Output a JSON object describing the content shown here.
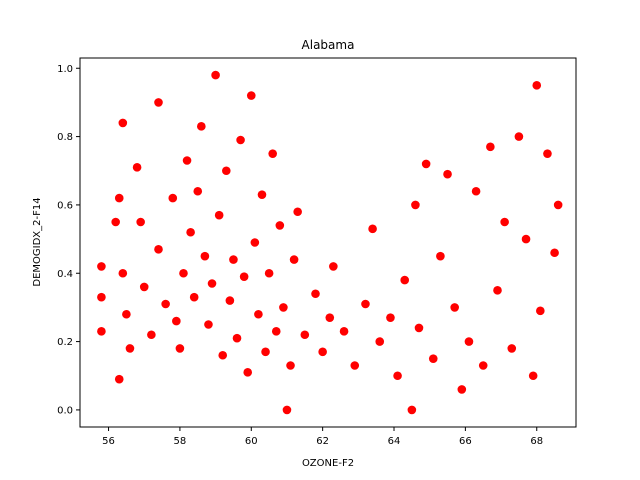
{
  "chart_data": {
    "type": "scatter",
    "title": "Alabama",
    "xlabel": "OZONE-F2",
    "ylabel": "DEMOGIDX_2-F14",
    "xlim": [
      55.2,
      69.1
    ],
    "ylim": [
      -0.05,
      1.03
    ],
    "xticks": [
      56,
      58,
      60,
      62,
      64,
      66,
      68
    ],
    "yticks": [
      0.0,
      0.2,
      0.4,
      0.6,
      0.8,
      1.0
    ],
    "xtick_labels": [
      "56",
      "58",
      "60",
      "62",
      "64",
      "66",
      "68"
    ],
    "ytick_labels": [
      "0.0",
      "0.2",
      "0.4",
      "0.6",
      "0.8",
      "1.0"
    ],
    "grid": false,
    "legend": "none",
    "marker_color": "#ff0000",
    "series": [
      {
        "x": [
          55.8,
          55.8,
          55.8,
          56.2,
          56.3,
          56.3,
          56.4,
          56.4,
          56.5,
          56.6,
          56.8,
          56.9,
          57.0,
          57.2,
          57.4,
          57.4,
          57.6,
          57.8,
          57.9,
          58.0,
          58.1,
          58.2,
          58.3,
          58.4,
          58.5,
          58.6,
          58.7,
          58.8,
          58.9,
          59.0,
          59.1,
          59.2,
          59.3,
          59.4,
          59.5,
          59.6,
          59.7,
          59.8,
          59.9,
          60.0,
          60.1,
          60.2,
          60.3,
          60.4,
          60.5,
          60.6,
          60.7,
          60.8,
          60.9,
          61.0,
          61.1,
          61.2,
          61.3,
          61.5,
          61.8,
          62.0,
          62.2,
          62.3,
          62.6,
          62.9,
          63.2,
          63.4,
          63.6,
          63.9,
          64.1,
          64.3,
          64.5,
          64.6,
          64.7,
          64.9,
          65.1,
          65.3,
          65.5,
          65.7,
          65.9,
          66.1,
          66.3,
          66.5,
          66.7,
          66.9,
          67.1,
          67.3,
          67.5,
          67.7,
          67.9,
          68.1,
          68.3,
          68.5,
          68.6,
          68.0
        ],
        "y": [
          0.42,
          0.33,
          0.23,
          0.55,
          0.62,
          0.09,
          0.84,
          0.4,
          0.28,
          0.18,
          0.71,
          0.55,
          0.36,
          0.22,
          0.9,
          0.47,
          0.31,
          0.62,
          0.26,
          0.18,
          0.4,
          0.73,
          0.52,
          0.33,
          0.64,
          0.83,
          0.45,
          0.25,
          0.37,
          0.98,
          0.57,
          0.16,
          0.7,
          0.32,
          0.44,
          0.21,
          0.79,
          0.39,
          0.11,
          0.92,
          0.49,
          0.28,
          0.63,
          0.17,
          0.4,
          0.75,
          0.23,
          0.54,
          0.3,
          0.0,
          0.13,
          0.44,
          0.58,
          0.22,
          0.34,
          0.17,
          0.27,
          0.42,
          0.23,
          0.13,
          0.31,
          0.53,
          0.2,
          0.27,
          0.1,
          0.38,
          0.0,
          0.6,
          0.24,
          0.72,
          0.15,
          0.45,
          0.69,
          0.3,
          0.06,
          0.2,
          0.64,
          0.13,
          0.77,
          0.35,
          0.55,
          0.18,
          0.8,
          0.5,
          0.1,
          0.29,
          0.75,
          0.46,
          0.6,
          0.95
        ]
      }
    ]
  }
}
